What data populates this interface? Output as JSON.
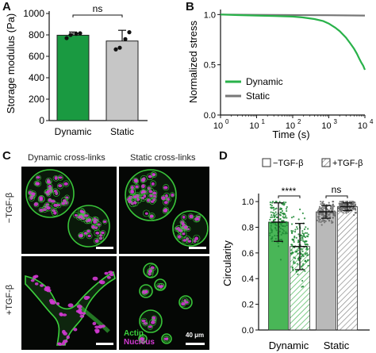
{
  "panels": {
    "A": "A",
    "B": "B",
    "C": "C",
    "D": "D"
  },
  "panelA": {
    "chart_data": {
      "type": "bar",
      "categories": [
        "Dynamic",
        "Static"
      ],
      "values": [
        797,
        743
      ],
      "errors": [
        30,
        100
      ],
      "points": [
        [
          770,
          800,
          810,
          815
        ],
        [
          665,
          680,
          760,
          825
        ]
      ],
      "ylabel": "Storage modulus (Pa)",
      "ylim": [
        0,
        1000
      ],
      "yticks": [
        0,
        200,
        400,
        600,
        800,
        1000
      ],
      "bar_colors": [
        "#1a9a41",
        "#c6c6c6"
      ],
      "significance": "ns"
    }
  },
  "panelB": {
    "chart_data": {
      "type": "line",
      "xscale": "log",
      "xlim": [
        1,
        10000
      ],
      "ylim": [
        0,
        1.05
      ],
      "xlabel": "Time (s)",
      "ylabel": "Normalized stress",
      "xticks": [
        "10",
        "10",
        "10",
        "10",
        "10"
      ],
      "xtick_exponents": [
        "0",
        "1",
        "2",
        "3",
        "4"
      ],
      "yticks": [
        "0.0",
        "0.5",
        "1.0"
      ],
      "legend_position": "bottom-left",
      "series": [
        {
          "name": "Dynamic",
          "color": "#29b24a",
          "x": [
            1,
            3,
            10,
            30,
            100,
            200,
            400,
            700,
            1000,
            1500,
            2000,
            3000,
            4000,
            5000,
            6000,
            7000,
            8000,
            9000,
            10000
          ],
          "y": [
            1.0,
            0.995,
            0.99,
            0.985,
            0.98,
            0.97,
            0.955,
            0.935,
            0.91,
            0.87,
            0.835,
            0.77,
            0.71,
            0.66,
            0.61,
            0.56,
            0.52,
            0.49,
            0.45
          ]
        },
        {
          "name": "Static",
          "color": "#777777",
          "x": [
            1,
            10,
            100,
            1000,
            10000
          ],
          "y": [
            1.0,
            0.997,
            0.995,
            0.993,
            0.99
          ]
        }
      ]
    }
  },
  "panelC": {
    "col_titles": [
      "Dynamic cross-links",
      "Static cross-links"
    ],
    "row_labels": [
      "−TGF-β",
      "+TGF-β"
    ],
    "actin_label": "Actin",
    "nucleus_label": "Nucleus",
    "scale_label": "40 μm",
    "colors": {
      "actin": "#3ccf3c",
      "nucleus": "#d23ad2"
    }
  },
  "panelD": {
    "legend": [
      "−TGF-β",
      "+TGF-β"
    ],
    "chart_data": {
      "type": "bar",
      "categories": [
        "Dynamic",
        "Static"
      ],
      "series": [
        {
          "name": "−TGF-β",
          "values": [
            0.84,
            0.92
          ],
          "errors": [
            0.15,
            0.05
          ]
        },
        {
          "name": "+TGF-β",
          "values": [
            0.65,
            0.96
          ],
          "errors": [
            0.18,
            0.03
          ]
        }
      ],
      "ylabel": "Circularity",
      "ylim": [
        0,
        1.05
      ],
      "yticks": [
        "0.0",
        "0.2",
        "0.4",
        "0.6",
        "0.8",
        "1.0"
      ],
      "significance": [
        "****",
        "ns"
      ],
      "colors": {
        "dynamic": "#49b657",
        "static": "#b9b9b9"
      }
    }
  }
}
